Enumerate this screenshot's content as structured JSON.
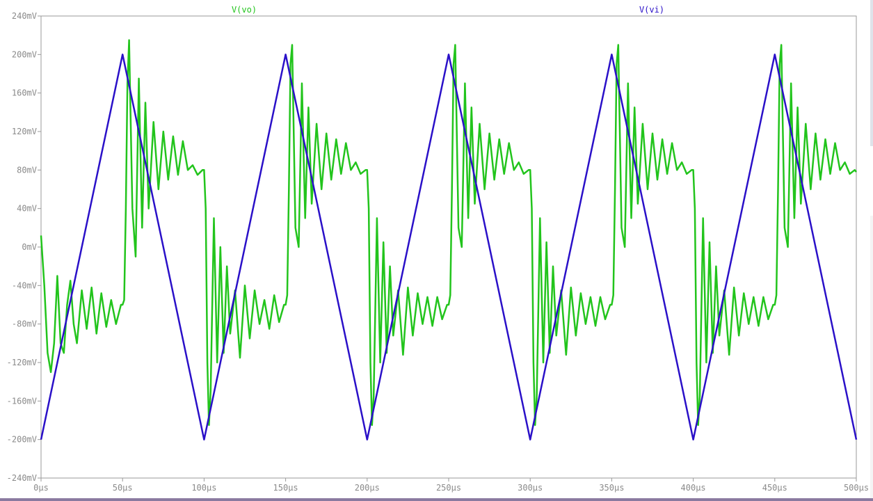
{
  "chart_data": {
    "type": "line",
    "title": "",
    "xlabel": "",
    "ylabel": "",
    "x_unit": "µs",
    "y_unit": "mV",
    "xlim": [
      0,
      500
    ],
    "ylim": [
      -240,
      240
    ],
    "x_ticks": [
      0,
      50,
      100,
      150,
      200,
      250,
      300,
      350,
      400,
      450,
      500
    ],
    "y_ticks": [
      -240,
      -200,
      -160,
      -120,
      -80,
      -40,
      0,
      40,
      80,
      120,
      160,
      200,
      240
    ],
    "x_tick_labels": [
      "0µs",
      "50µs",
      "100µs",
      "150µs",
      "200µs",
      "250µs",
      "300µs",
      "350µs",
      "400µs",
      "450µs",
      "500µs"
    ],
    "y_tick_labels": [
      "-240mV",
      "-200mV",
      "-160mV",
      "-120mV",
      "-80mV",
      "-40mV",
      "0mV",
      "40mV",
      "80mV",
      "120mV",
      "160mV",
      "200mV",
      "240mV"
    ],
    "grid": false,
    "series": [
      {
        "name": "V(vo)",
        "color": "#22c41c",
        "x": [
          0,
          2,
          4,
          6,
          8,
          10,
          12,
          14,
          16,
          18,
          20,
          22,
          25,
          28,
          31,
          34,
          37,
          40,
          43,
          46,
          49,
          50,
          51,
          52,
          53,
          54,
          56,
          58,
          60,
          62,
          64,
          66,
          69,
          72,
          75,
          78,
          81,
          84,
          87,
          90,
          93,
          96,
          99,
          100,
          101,
          102,
          103,
          104,
          106,
          108,
          110,
          112,
          114,
          116,
          119,
          122,
          125,
          128,
          131,
          134,
          137,
          140,
          143,
          146,
          149,
          150,
          151,
          152,
          153,
          154,
          156,
          158,
          160,
          162,
          164,
          166,
          169,
          172,
          175,
          178,
          181,
          184,
          187,
          190,
          193,
          196,
          199,
          200,
          201,
          202,
          203,
          204,
          206,
          208,
          210,
          212,
          214,
          216,
          219,
          222,
          225,
          228,
          231,
          234,
          237,
          240,
          243,
          246,
          249,
          250,
          251,
          252,
          253,
          254,
          256,
          258,
          260,
          262,
          264,
          266,
          269,
          272,
          275,
          278,
          281,
          284,
          287,
          290,
          293,
          296,
          299,
          300,
          301,
          302,
          303,
          304,
          306,
          308,
          310,
          312,
          314,
          316,
          319,
          322,
          325,
          328,
          331,
          334,
          337,
          340,
          343,
          346,
          349,
          350,
          351,
          352,
          353,
          354,
          356,
          358,
          360,
          362,
          364,
          366,
          369,
          372,
          375,
          378,
          381,
          384,
          387,
          390,
          393,
          396,
          399,
          400,
          401,
          402,
          403,
          404,
          406,
          408,
          410,
          412,
          414,
          416,
          419,
          422,
          425,
          428,
          431,
          434,
          437,
          440,
          443,
          446,
          449,
          450,
          451,
          452,
          453,
          454,
          456,
          458,
          460,
          462,
          464,
          466,
          469,
          472,
          475,
          478,
          481,
          484,
          487,
          490,
          493,
          496,
          499,
          500
        ],
        "values": [
          12,
          -40,
          -110,
          -130,
          -100,
          -30,
          -100,
          -110,
          -60,
          -35,
          -80,
          -100,
          -45,
          -85,
          -42,
          -90,
          -48,
          -83,
          -55,
          -80,
          -60,
          -60,
          -55,
          40,
          170,
          215,
          40,
          -10,
          175,
          20,
          150,
          40,
          130,
          60,
          120,
          70,
          115,
          75,
          110,
          80,
          85,
          75,
          80,
          80,
          40,
          -120,
          -185,
          -150,
          30,
          -120,
          0,
          -110,
          -20,
          -90,
          -45,
          -115,
          -40,
          -95,
          -45,
          -80,
          -55,
          -85,
          -50,
          -78,
          -60,
          -60,
          -50,
          60,
          190,
          210,
          20,
          0,
          170,
          30,
          145,
          45,
          128,
          60,
          118,
          70,
          112,
          76,
          108,
          80,
          88,
          76,
          80,
          80,
          40,
          -120,
          -185,
          -155,
          30,
          -120,
          5,
          -110,
          -20,
          -92,
          -45,
          -112,
          -42,
          -92,
          -48,
          -80,
          -52,
          -82,
          -52,
          -75,
          -60,
          -60,
          -50,
          60,
          190,
          210,
          20,
          0,
          170,
          30,
          145,
          45,
          128,
          60,
          118,
          70,
          112,
          76,
          108,
          80,
          88,
          76,
          80,
          80,
          40,
          -120,
          -185,
          -155,
          30,
          -120,
          5,
          -110,
          -20,
          -92,
          -45,
          -112,
          -42,
          -92,
          -48,
          -80,
          -52,
          -82,
          -52,
          -75,
          -60,
          -60,
          -50,
          60,
          190,
          210,
          20,
          0,
          170,
          30,
          145,
          45,
          128,
          60,
          118,
          70,
          112,
          76,
          108,
          80,
          88,
          76,
          80,
          80,
          40,
          -120,
          -185,
          -155,
          30,
          -120,
          5,
          -110,
          -20,
          -92,
          -45,
          -112,
          -42,
          -92,
          -48,
          -80,
          -52,
          -82,
          -52,
          -75,
          -60,
          -60,
          -50,
          60,
          190,
          210,
          20,
          0,
          170,
          30,
          145,
          45,
          128,
          60,
          118,
          70,
          112,
          76,
          108,
          80,
          88,
          76,
          80,
          78
        ]
      },
      {
        "name": "V(vi)",
        "color": "#2a10c8",
        "x": [
          0,
          50,
          100,
          150,
          200,
          250,
          300,
          350,
          400,
          450,
          500
        ],
        "values": [
          -200,
          200,
          -200,
          200,
          -200,
          200,
          -200,
          200,
          -200,
          200,
          -200
        ]
      }
    ]
  }
}
